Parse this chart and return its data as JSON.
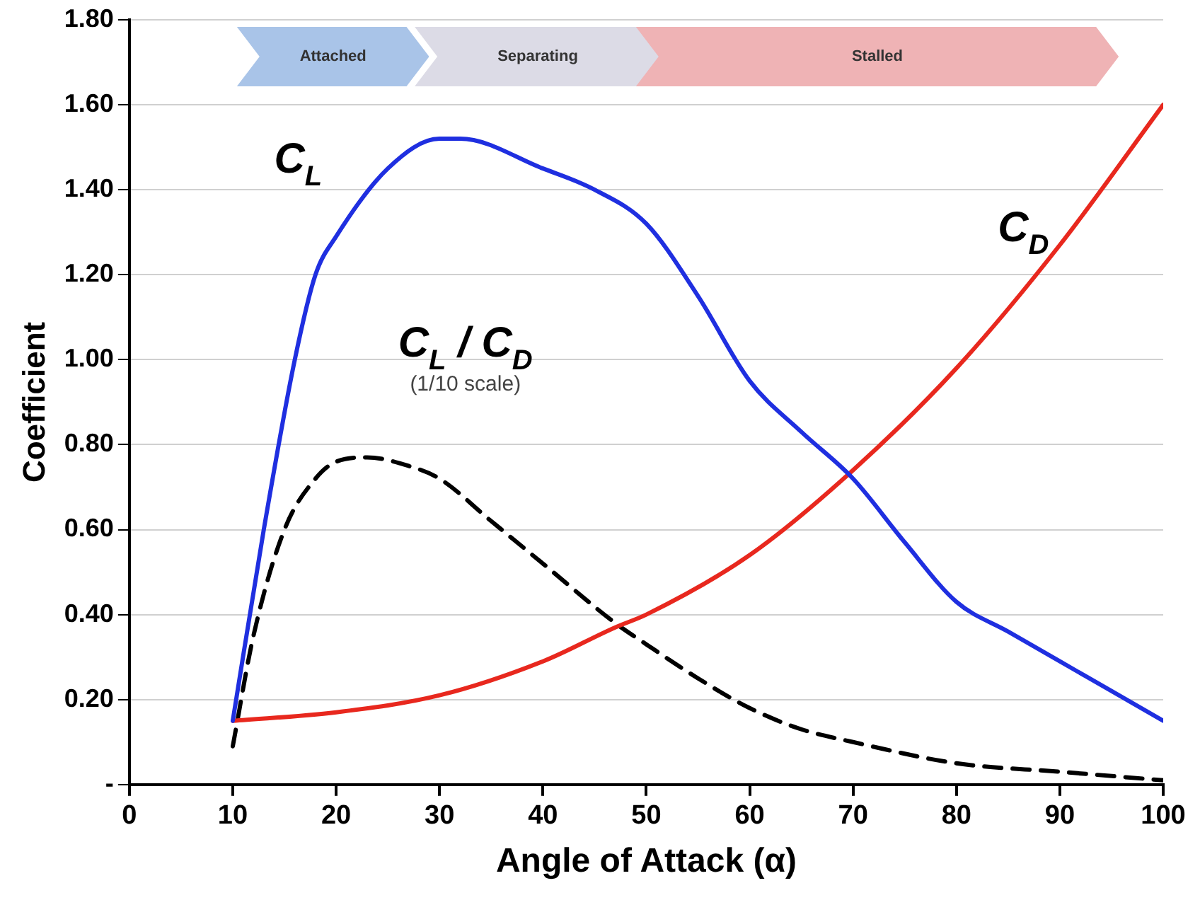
{
  "chart_data": {
    "type": "line",
    "xlabel": "Angle of Attack (α)",
    "ylabel": "Coefficient",
    "xlim": [
      0,
      100
    ],
    "xticks": [
      0,
      10,
      20,
      30,
      40,
      50,
      60,
      70,
      80,
      90,
      100
    ],
    "ylim": [
      0,
      1.8
    ],
    "yticks": [
      {
        "value": 0,
        "label": "-"
      },
      {
        "value": 0.2,
        "label": "0.20"
      },
      {
        "value": 0.4,
        "label": "0.40"
      },
      {
        "value": 0.6,
        "label": "0.60"
      },
      {
        "value": 0.8,
        "label": "0.80"
      },
      {
        "value": 1.0,
        "label": "1.00"
      },
      {
        "value": 1.2,
        "label": "1.20"
      },
      {
        "value": 1.4,
        "label": "1.40"
      },
      {
        "value": 1.6,
        "label": "1.60"
      },
      {
        "value": 1.8,
        "label": "1.80"
      }
    ],
    "grid": "y",
    "legend": false,
    "marker": "none",
    "series": [
      {
        "name": "C$_{L}$",
        "color": "#1f2fe0",
        "line_style": "solid",
        "x": [
          10,
          13,
          16,
          18,
          20,
          25,
          30,
          32,
          40,
          45,
          50,
          55,
          60,
          65,
          70,
          75,
          80,
          85,
          90,
          95,
          100
        ],
        "values": [
          0.15,
          0.6,
          1.0,
          1.2,
          1.29,
          1.45,
          1.52,
          1.52,
          1.45,
          1.4,
          1.32,
          1.15,
          0.95,
          0.83,
          0.72,
          0.57,
          0.43,
          0.36,
          0.29,
          0.22,
          0.15
        ]
      },
      {
        "name": "C$_{D}$",
        "color": "#e8281e",
        "line_style": "solid",
        "x": [
          10,
          20,
          30,
          40,
          47,
          50,
          60,
          70,
          80,
          90,
          100
        ],
        "values": [
          0.15,
          0.17,
          0.21,
          0.29,
          0.37,
          0.4,
          0.54,
          0.74,
          0.98,
          1.27,
          1.6
        ]
      },
      {
        "name": "C$_{L}$ / C$_{D}$",
        "color": "#000000",
        "line_style": "dashed",
        "x": [
          10,
          12,
          15,
          18,
          20,
          23,
          27,
          30,
          35,
          40,
          47,
          50,
          55,
          60,
          65,
          70,
          80,
          90,
          100
        ],
        "values": [
          0.09,
          0.35,
          0.6,
          0.72,
          0.76,
          0.77,
          0.75,
          0.72,
          0.62,
          0.52,
          0.38,
          0.33,
          0.25,
          0.18,
          0.13,
          0.1,
          0.05,
          0.03,
          0.01
        ]
      }
    ],
    "annotations": [
      "Attached",
      "Separating",
      "Stalled",
      "(1/10 scale)"
    ]
  }
}
